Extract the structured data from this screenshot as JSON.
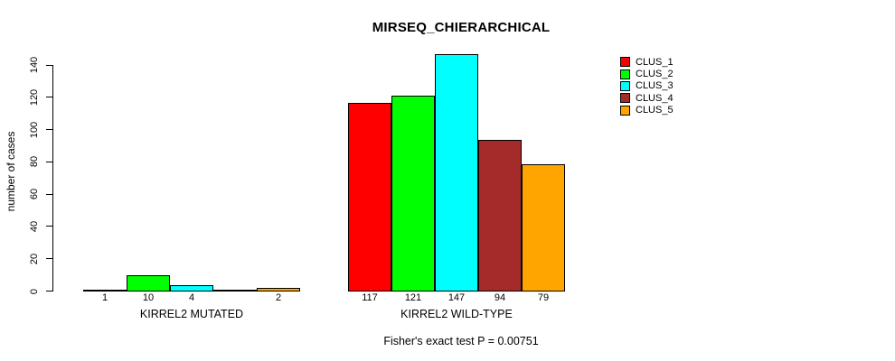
{
  "chart_data": {
    "type": "bar",
    "title": "MIRSEQ_CHIERARCHICAL",
    "ylabel": "number of cases",
    "ylim": [
      0,
      140
    ],
    "yticks": [
      0,
      20,
      40,
      60,
      80,
      100,
      120,
      140
    ],
    "categories": [
      "KIRREL2 MUTATED",
      "KIRREL2 WILD-TYPE"
    ],
    "series": [
      {
        "name": "CLUS_1",
        "color": "#ff0000",
        "values": [
          1,
          117
        ]
      },
      {
        "name": "CLUS_2",
        "color": "#00ff00",
        "values": [
          10,
          121
        ]
      },
      {
        "name": "CLUS_3",
        "color": "#00ffff",
        "values": [
          4,
          147
        ]
      },
      {
        "name": "CLUS_4",
        "color": "#a52a2a",
        "values": [
          0,
          94
        ]
      },
      {
        "name": "CLUS_5",
        "color": "#ffa500",
        "values": [
          2,
          79
        ]
      }
    ],
    "bar_labels": [
      [
        "1",
        "10",
        "4",
        "",
        "2"
      ],
      [
        "117",
        "121",
        "147",
        "94",
        "79"
      ]
    ],
    "legend_position": "right",
    "grid": false,
    "annotation": "Fisher's exact test P = 0.00751",
    "background": "#ffffff",
    "axis_color": "#000000"
  }
}
